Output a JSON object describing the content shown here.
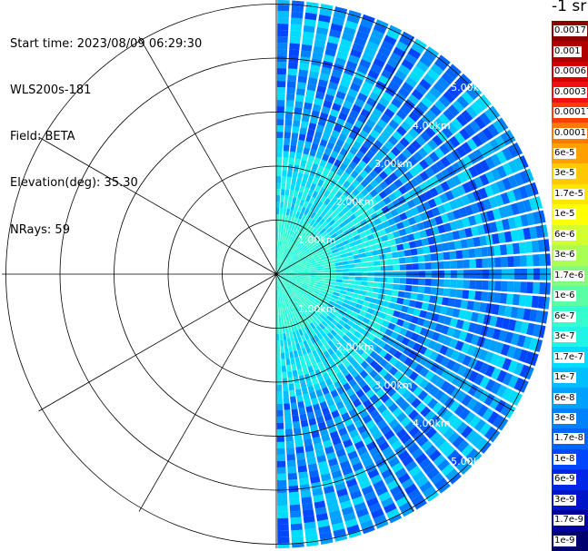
{
  "header": {
    "start_time": "Start time: 2023/08/09 06:29:30",
    "instrument": "WLS200s-181",
    "field": "Field: BETA",
    "elevation": "Elevation(deg): 35.30",
    "nrays": "NRays: 59"
  },
  "colorbar": {
    "unit": "-1 sr",
    "labels": [
      "0.0017",
      "0.001",
      "0.0006",
      "0.0003",
      "0.00017",
      "0.0001",
      "6e-5",
      "3e-5",
      "1.7e-5",
      "1e-5",
      "6e-6",
      "3e-6",
      "1.7e-6",
      "1e-6",
      "6e-7",
      "3e-7",
      "1.7e-7",
      "1e-7",
      "6e-8",
      "3e-8",
      "1.7e-8",
      "1e-8",
      "6e-9",
      "3e-9",
      "1.7e-9",
      "1e-9"
    ],
    "colors": [
      "#8b0000",
      "#b00000",
      "#d40000",
      "#f01010",
      "#ff3c00",
      "#ff7800",
      "#ffa000",
      "#ffc800",
      "#ffe600",
      "#ffff00",
      "#d2ff2d",
      "#aaff55",
      "#82ff7d",
      "#5affa5",
      "#32ffcd",
      "#1ef5e6",
      "#00dcff",
      "#00beff",
      "#00a0ff",
      "#0082ff",
      "#0064ff",
      "#0046ff",
      "#0028e6",
      "#0014c8",
      "#0000a0",
      "#00006e"
    ]
  },
  "chart_data": {
    "type": "heatmap",
    "projection": "polar PPI scan (azimuth sector 0-180 deg shown)",
    "field": "BETA",
    "units": "sr-1",
    "elevation_deg": 35.3,
    "n_rays": 59,
    "range_ring_labels": [
      "1.00km",
      "2.00km",
      "3.00km",
      "4.00km",
      "5.00km"
    ],
    "azimuth_coverage_deg": [
      0,
      180
    ],
    "value_range": [
      1e-09,
      0.0017
    ],
    "color_scale": "log"
  }
}
